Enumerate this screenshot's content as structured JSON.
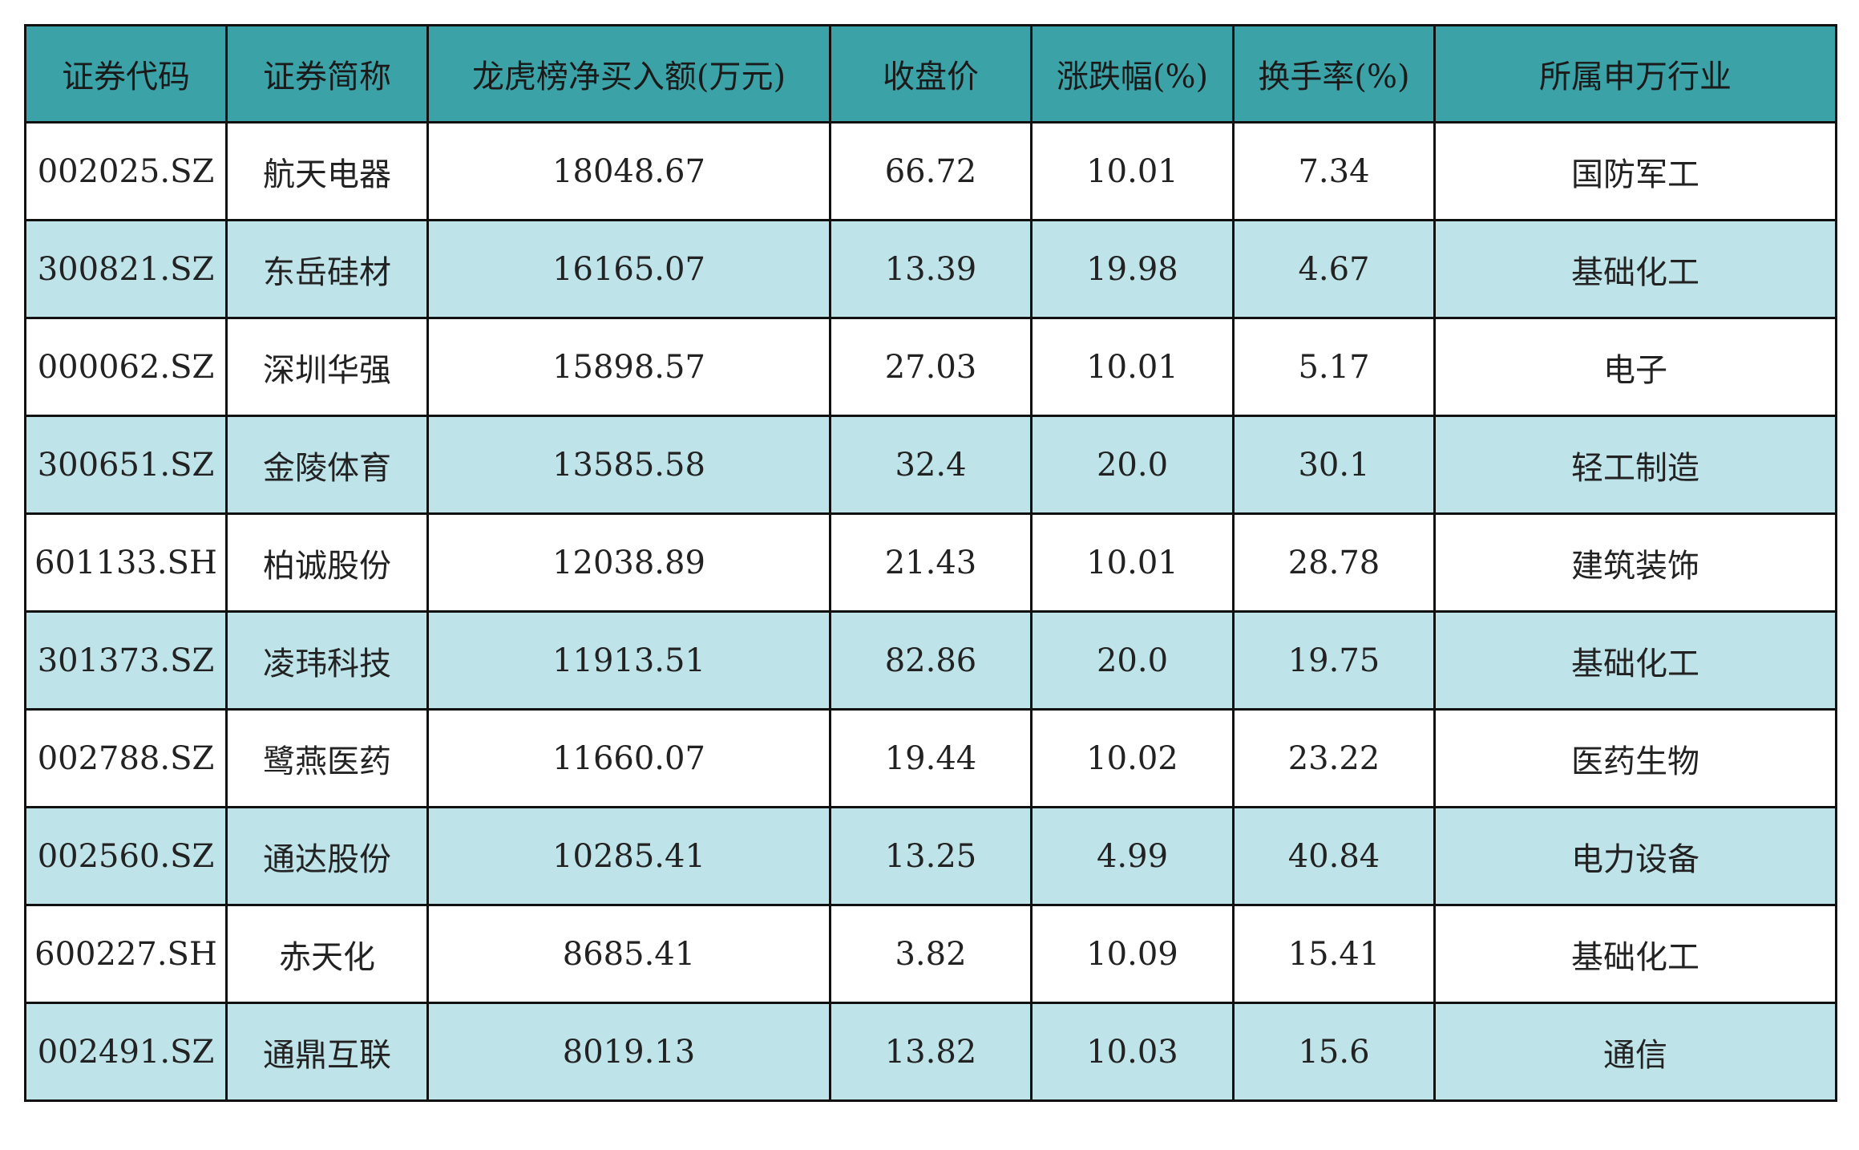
{
  "table": {
    "headers": [
      "证券代码",
      "证券简称",
      "龙虎榜净买入额(万元)",
      "收盘价",
      "涨跌幅(%)",
      "换手率(%)",
      "所属申万行业"
    ],
    "rows": [
      [
        "002025.SZ",
        "航天电器",
        "18048.67",
        "66.72",
        "10.01",
        "7.34",
        "国防军工"
      ],
      [
        "300821.SZ",
        "东岳硅材",
        "16165.07",
        "13.39",
        "19.98",
        "4.67",
        "基础化工"
      ],
      [
        "000062.SZ",
        "深圳华强",
        "15898.57",
        "27.03",
        "10.01",
        "5.17",
        "电子"
      ],
      [
        "300651.SZ",
        "金陵体育",
        "13585.58",
        "32.4",
        "20.0",
        "30.1",
        "轻工制造"
      ],
      [
        "601133.SH",
        "柏诚股份",
        "12038.89",
        "21.43",
        "10.01",
        "28.78",
        "建筑装饰"
      ],
      [
        "301373.SZ",
        "凌玮科技",
        "11913.51",
        "82.86",
        "20.0",
        "19.75",
        "基础化工"
      ],
      [
        "002788.SZ",
        "鹭燕医药",
        "11660.07",
        "19.44",
        "10.02",
        "23.22",
        "医药生物"
      ],
      [
        "002560.SZ",
        "通达股份",
        "10285.41",
        "13.25",
        "4.99",
        "40.84",
        "电力设备"
      ],
      [
        "600227.SH",
        "赤天化",
        "8685.41",
        "3.82",
        "10.09",
        "15.41",
        "基础化工"
      ],
      [
        "002491.SZ",
        "通鼎互联",
        "8019.13",
        "13.82",
        "10.03",
        "15.6",
        "通信"
      ]
    ]
  },
  "colors": {
    "header_bg": "#3ba3a7",
    "alt_row_bg": "#bee3e8",
    "border": "#111111"
  }
}
